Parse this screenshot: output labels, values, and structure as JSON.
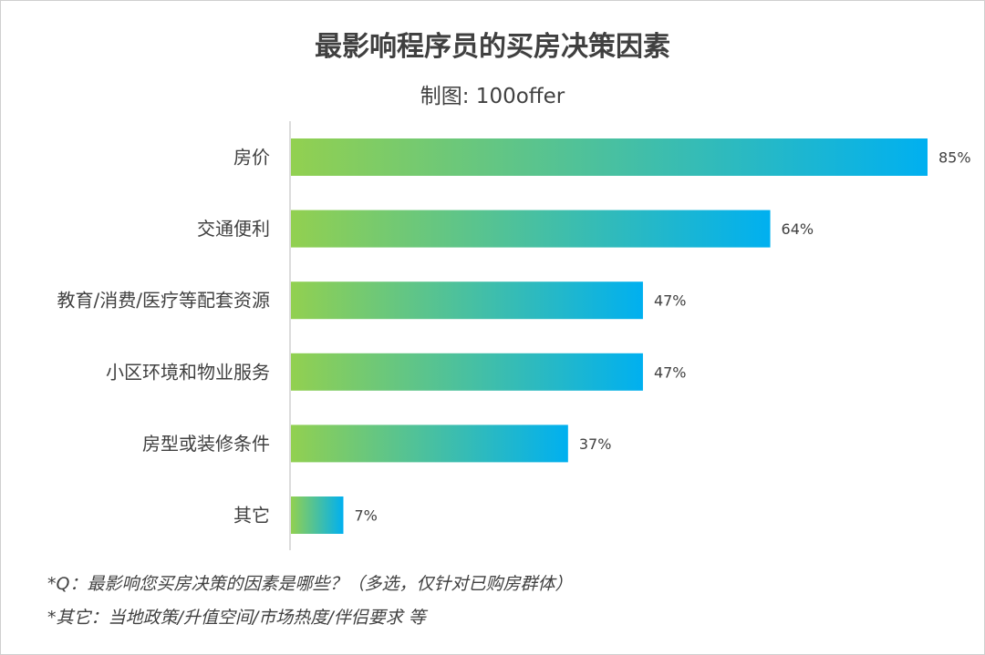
{
  "chart_data": {
    "type": "bar",
    "orientation": "horizontal",
    "title": "最影响程序员的买房决策因素",
    "subtitle": "制图: 100offer",
    "categories": [
      "房价",
      "交通便利",
      "教育/消费/医疗等配套资源",
      "小区环境和物业服务",
      "房型或装修条件",
      "其它"
    ],
    "values": [
      85,
      64,
      47,
      47,
      37,
      7
    ],
    "value_labels": [
      "85%",
      "64%",
      "47%",
      "47%",
      "37%",
      "7%"
    ],
    "unit": "%",
    "xlim": [
      0,
      85
    ],
    "grid": false,
    "legend": "none",
    "gradient_colors": [
      "#92d050",
      "#00b0f0"
    ]
  },
  "notes": [
    "*Q：最影响您买房决策的因素是哪些？（多选，仅针对已购房群体）",
    "*其它：当地政策/升值空间/市场热度/伴侣要求 等"
  ]
}
